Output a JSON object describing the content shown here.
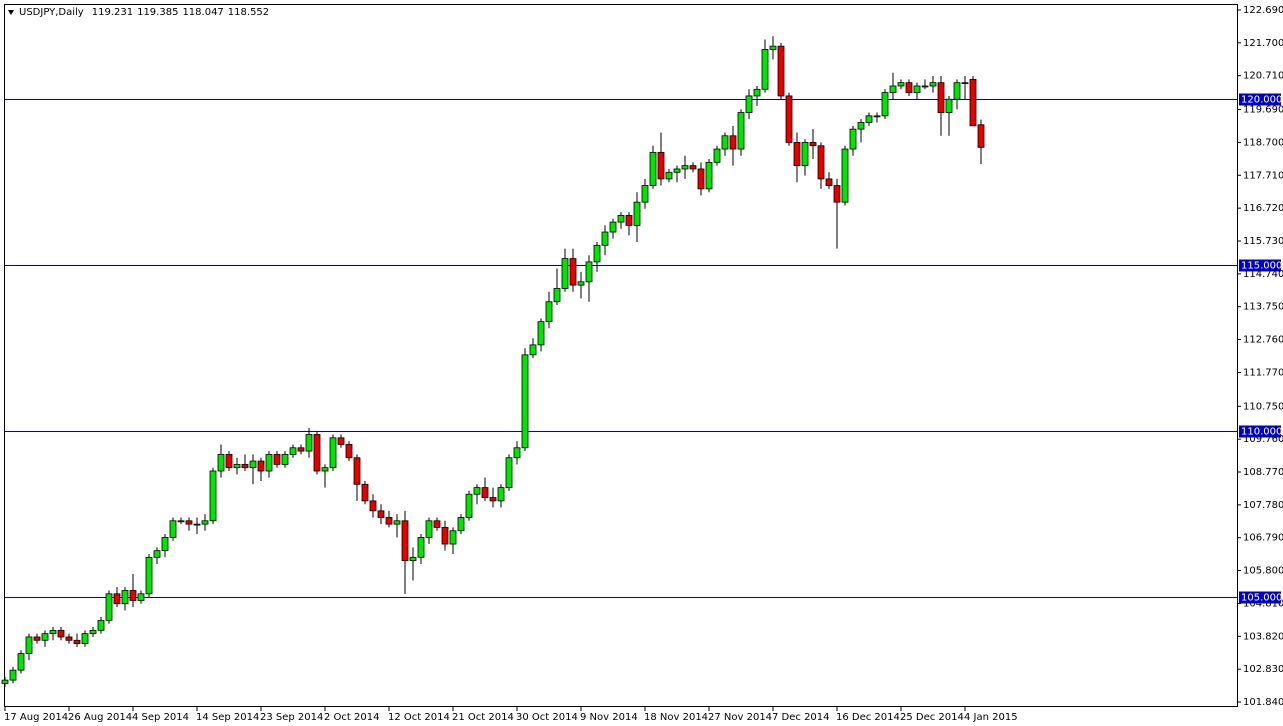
{
  "chart_data": {
    "type": "candlestick",
    "title": "USDJPY,Daily",
    "categories": [
      "17 Aug 2014",
      null,
      null,
      null,
      null,
      null,
      null,
      null,
      "26 Aug 2014",
      null,
      null,
      null,
      null,
      null,
      null,
      null,
      "4 Sep 2014",
      null,
      null,
      null,
      null,
      null,
      null,
      null,
      "14 Sep 2014",
      null,
      null,
      null,
      null,
      null,
      null,
      null,
      "23 Sep 2014",
      null,
      null,
      null,
      null,
      null,
      null,
      null,
      "2 Oct 2014",
      null,
      null,
      null,
      null,
      null,
      null,
      null,
      "12 Oct 2014",
      null,
      null,
      null,
      null,
      null,
      null,
      null,
      "21 Oct 2014",
      null,
      null,
      null,
      null,
      null,
      null,
      null,
      "30 Oct 2014",
      null,
      null,
      null,
      null,
      null,
      null,
      null,
      "9 Nov 2014",
      null,
      null,
      null,
      null,
      null,
      null,
      null,
      "18 Nov 2014",
      null,
      null,
      null,
      null,
      null,
      null,
      null,
      "27 Nov 2014",
      null,
      null,
      null,
      null,
      null,
      null,
      null,
      "7 Dec 2014",
      null,
      null,
      null,
      null,
      null,
      null,
      null,
      "16 Dec 2014",
      null,
      null,
      null,
      null,
      null,
      null,
      null,
      "25 Dec 2014",
      null,
      null,
      null,
      null,
      null,
      null,
      null,
      "4 Jan 2015",
      null,
      null
    ],
    "open": [
      102.4,
      102.5,
      102.8,
      103.3,
      103.8,
      103.7,
      103.9,
      104.0,
      103.8,
      103.7,
      103.6,
      103.9,
      104.0,
      104.3,
      105.1,
      104.8,
      105.2,
      104.9,
      105.1,
      106.2,
      106.4,
      106.8,
      107.3,
      107.3,
      107.2,
      107.2,
      107.3,
      108.8,
      109.3,
      108.9,
      109.0,
      108.9,
      109.1,
      108.8,
      109.3,
      109.0,
      109.3,
      109.5,
      109.4,
      109.9,
      108.8,
      108.9,
      109.8,
      109.6,
      109.2,
      108.4,
      107.9,
      107.6,
      107.4,
      107.2,
      107.3,
      106.1,
      106.2,
      106.8,
      107.3,
      107.1,
      106.6,
      107.0,
      107.4,
      108.1,
      108.3,
      108.0,
      107.9,
      108.3,
      109.2,
      109.5,
      112.3,
      112.6,
      113.3,
      113.9,
      114.3,
      115.2,
      114.4,
      114.5,
      115.1,
      115.6,
      116.0,
      116.3,
      116.5,
      116.2,
      116.9,
      117.4,
      118.4,
      117.6,
      117.8,
      117.9,
      118.0,
      117.9,
      117.3,
      118.1,
      118.5,
      118.9,
      118.5,
      119.6,
      120.1,
      120.3,
      121.5,
      121.6,
      120.1,
      118.7,
      118.0,
      118.7,
      118.6,
      117.6,
      117.4,
      116.9,
      118.5,
      119.1,
      119.3,
      119.5,
      119.5,
      120.2,
      120.4,
      120.5,
      120.2,
      120.4,
      120.4,
      120.5,
      119.6,
      120.0,
      120.5,
      120.6,
      119.231
    ],
    "high": [
      102.6,
      102.9,
      103.4,
      103.9,
      103.9,
      104.0,
      104.1,
      104.1,
      103.9,
      103.9,
      104.0,
      104.1,
      104.4,
      105.2,
      105.3,
      105.3,
      105.7,
      105.2,
      106.3,
      106.5,
      106.9,
      107.4,
      107.4,
      107.4,
      107.4,
      107.5,
      108.9,
      109.6,
      109.4,
      109.2,
      109.3,
      109.3,
      109.2,
      109.4,
      109.4,
      109.4,
      109.6,
      109.6,
      110.1,
      110.0,
      109.0,
      109.9,
      109.9,
      109.7,
      109.3,
      108.5,
      108.1,
      107.8,
      107.6,
      107.5,
      107.6,
      106.5,
      106.9,
      107.4,
      107.4,
      107.3,
      107.1,
      107.5,
      108.2,
      108.4,
      108.6,
      108.3,
      108.4,
      109.3,
      109.7,
      112.5,
      112.8,
      113.4,
      114.2,
      114.9,
      115.5,
      115.5,
      114.8,
      115.3,
      115.7,
      116.2,
      116.4,
      116.6,
      116.6,
      117.2,
      117.6,
      118.6,
      119.0,
      117.9,
      118.0,
      118.3,
      118.1,
      118.1,
      118.2,
      118.6,
      119.0,
      119.2,
      119.7,
      120.3,
      120.4,
      121.8,
      121.9,
      121.7,
      120.2,
      119.0,
      118.8,
      119.1,
      118.7,
      117.8,
      117.6,
      118.6,
      119.2,
      119.4,
      119.6,
      119.6,
      120.3,
      120.8,
      120.6,
      120.6,
      120.5,
      120.6,
      120.7,
      120.7,
      120.1,
      120.6,
      120.7,
      120.7,
      119.385
    ],
    "low": [
      102.3,
      102.4,
      102.7,
      103.1,
      103.6,
      103.5,
      103.7,
      103.7,
      103.6,
      103.5,
      103.5,
      103.8,
      103.9,
      104.2,
      104.7,
      104.6,
      104.7,
      104.8,
      105.0,
      106.0,
      106.2,
      106.7,
      107.2,
      107.0,
      106.9,
      107.0,
      107.2,
      108.6,
      108.8,
      108.7,
      108.8,
      108.4,
      108.5,
      108.6,
      108.9,
      108.9,
      109.2,
      109.3,
      109.2,
      108.7,
      108.3,
      108.8,
      109.5,
      109.1,
      107.9,
      107.8,
      107.4,
      107.2,
      107.1,
      106.8,
      105.1,
      105.5,
      106.0,
      106.6,
      107.0,
      106.4,
      106.3,
      106.9,
      107.3,
      107.8,
      107.9,
      107.7,
      107.7,
      108.2,
      109.0,
      109.4,
      112.2,
      112.4,
      113.1,
      113.8,
      114.2,
      114.2,
      114.0,
      113.9,
      114.8,
      115.3,
      115.8,
      116.1,
      115.9,
      115.7,
      116.7,
      117.3,
      117.4,
      117.5,
      117.5,
      117.6,
      117.8,
      117.1,
      117.2,
      118.0,
      118.3,
      118.0,
      118.3,
      119.4,
      119.8,
      120.2,
      121.2,
      120.0,
      118.6,
      117.5,
      117.7,
      118.2,
      117.3,
      117.3,
      115.5,
      116.8,
      118.3,
      118.7,
      119.2,
      119.3,
      119.4,
      120.0,
      120.3,
      120.1,
      120.0,
      120.3,
      120.2,
      118.9,
      118.9,
      119.7,
      120.0,
      119.2,
      118.047
    ],
    "close": [
      102.5,
      102.8,
      103.3,
      103.8,
      103.7,
      103.9,
      104.0,
      103.8,
      103.7,
      103.6,
      103.9,
      104.0,
      104.3,
      105.1,
      104.8,
      105.2,
      104.9,
      105.1,
      106.2,
      106.4,
      106.8,
      107.3,
      107.3,
      107.2,
      107.2,
      107.3,
      108.8,
      109.3,
      108.9,
      109.0,
      108.9,
      109.1,
      108.8,
      109.3,
      109.0,
      109.3,
      109.5,
      109.4,
      109.9,
      108.8,
      108.9,
      109.8,
      109.6,
      109.2,
      108.4,
      107.9,
      107.6,
      107.4,
      107.2,
      107.3,
      106.1,
      106.2,
      106.8,
      107.3,
      107.1,
      106.6,
      107.0,
      107.4,
      108.1,
      108.3,
      108.0,
      107.9,
      108.3,
      109.2,
      109.5,
      112.3,
      112.6,
      113.3,
      113.9,
      114.3,
      115.2,
      114.4,
      114.5,
      115.1,
      115.6,
      116.0,
      116.3,
      116.5,
      116.2,
      116.9,
      117.4,
      118.4,
      117.6,
      117.8,
      117.9,
      118.0,
      117.9,
      117.3,
      118.1,
      118.5,
      118.9,
      118.5,
      119.6,
      120.1,
      120.3,
      121.5,
      121.6,
      120.1,
      118.7,
      118.0,
      118.7,
      118.6,
      117.6,
      117.4,
      116.9,
      118.5,
      119.1,
      119.3,
      119.5,
      119.5,
      120.2,
      120.4,
      120.5,
      120.2,
      120.4,
      120.4,
      120.5,
      119.6,
      120.0,
      120.5,
      120.5,
      119.2,
      118.552
    ],
    "up_color": "#00e600",
    "down_color": "#e60000",
    "ylim": [
      101.69,
      122.84
    ],
    "yticks": [
      {
        "value": 122.69,
        "label": "122.690"
      },
      {
        "value": 121.7,
        "label": "121.700"
      },
      {
        "value": 120.71,
        "label": "120.710"
      },
      {
        "value": 119.69,
        "label": "119.690"
      },
      {
        "value": 118.7,
        "label": "118.700"
      },
      {
        "value": 117.71,
        "label": "117.710"
      },
      {
        "value": 116.72,
        "label": "116.720"
      },
      {
        "value": 115.73,
        "label": "115.730"
      },
      {
        "value": 114.74,
        "label": "114.740"
      },
      {
        "value": 113.75,
        "label": "113.750"
      },
      {
        "value": 112.76,
        "label": "112.760"
      },
      {
        "value": 111.77,
        "label": "111.770"
      },
      {
        "value": 110.75,
        "label": "110.750"
      },
      {
        "value": 109.76,
        "label": "109.760"
      },
      {
        "value": 108.77,
        "label": "108.770"
      },
      {
        "value": 107.78,
        "label": "107.780"
      },
      {
        "value": 106.79,
        "label": "106.790"
      },
      {
        "value": 105.8,
        "label": "105.800"
      },
      {
        "value": 104.81,
        "label": "104.810"
      },
      {
        "value": 103.82,
        "label": "103.820"
      },
      {
        "value": 102.83,
        "label": "102.830"
      },
      {
        "value": 101.84,
        "label": "101.840"
      }
    ],
    "levels": [
      {
        "value": 120,
        "label": "120.000"
      },
      {
        "value": 115,
        "label": "115.000"
      },
      {
        "value": 110,
        "label": "110.000"
      },
      {
        "value": 105,
        "label": "105.000"
      }
    ],
    "level_color": "#0000c8"
  }
}
